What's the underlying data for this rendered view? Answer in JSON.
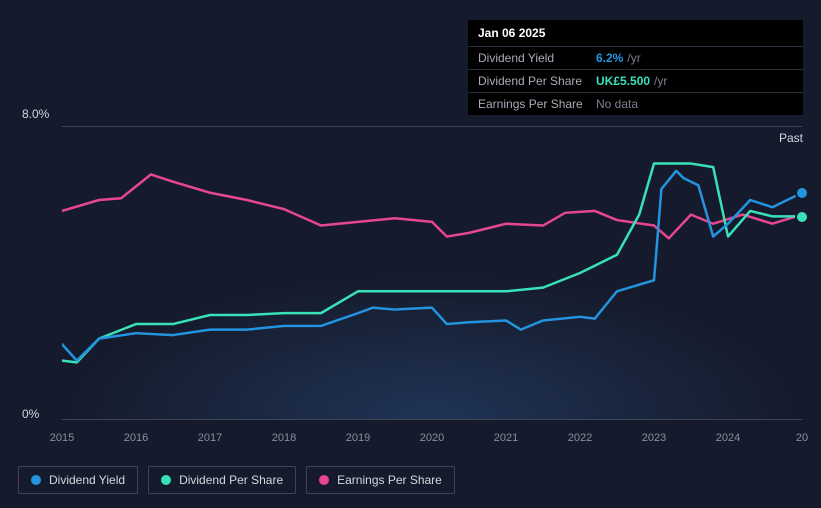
{
  "tooltip": {
    "date": "Jan 06 2025",
    "rows": [
      {
        "label": "Dividend Yield",
        "value": "6.2%",
        "suffix": "/yr",
        "class": "blue"
      },
      {
        "label": "Dividend Per Share",
        "value": "UK£5.500",
        "suffix": "/yr",
        "class": "teal"
      },
      {
        "label": "Earnings Per Share",
        "value": "No data",
        "class": "nodata"
      }
    ]
  },
  "yaxis": {
    "top": "8.0%",
    "bottom": "0%"
  },
  "past_label": "Past",
  "xaxis": {
    "labels": [
      "2015",
      "2016",
      "2017",
      "2018",
      "2019",
      "2020",
      "2021",
      "2022",
      "2023",
      "2024",
      "20"
    ]
  },
  "legend": [
    {
      "name": "Dividend Yield",
      "color": "#2394df"
    },
    {
      "name": "Dividend Per Share",
      "color": "#38e1b8"
    },
    {
      "name": "Earnings Per Share",
      "color": "#e74694"
    }
  ],
  "chart": {
    "background_color": "#151b2c",
    "grid_color": "#3e4454",
    "ylim": [
      0,
      8
    ],
    "series": {
      "dividend_yield": {
        "color": "#2394df",
        "line_width": 2.5,
        "x": [
          0,
          2,
          5,
          10,
          15,
          20,
          25,
          30,
          35,
          40,
          42,
          45,
          50,
          52,
          55,
          60,
          62,
          65,
          70,
          72,
          75,
          80,
          81,
          83,
          84,
          86,
          88,
          90,
          93,
          96,
          100
        ],
        "y": [
          2.05,
          1.6,
          2.2,
          2.35,
          2.3,
          2.45,
          2.45,
          2.55,
          2.55,
          2.9,
          3.05,
          3.0,
          3.05,
          2.6,
          2.65,
          2.7,
          2.45,
          2.7,
          2.8,
          2.75,
          3.5,
          3.8,
          6.3,
          6.8,
          6.6,
          6.4,
          5.0,
          5.35,
          6.0,
          5.8,
          6.2
        ],
        "endpoint": {
          "xpct": 100,
          "y": 6.2
        }
      },
      "dividend_per_share": {
        "color": "#38e1b8",
        "line_width": 2.5,
        "x": [
          0,
          2,
          5,
          10,
          15,
          20,
          25,
          30,
          35,
          40,
          45,
          50,
          55,
          60,
          65,
          70,
          75,
          78,
          80,
          82,
          85,
          88,
          90,
          93,
          96,
          100
        ],
        "y": [
          1.6,
          1.55,
          2.2,
          2.6,
          2.6,
          2.85,
          2.85,
          2.9,
          2.9,
          3.5,
          3.5,
          3.5,
          3.5,
          3.5,
          3.6,
          4.0,
          4.5,
          5.6,
          7.0,
          7.0,
          7.0,
          6.9,
          5.0,
          5.7,
          5.55,
          5.55
        ],
        "endpoint": {
          "xpct": 100,
          "y": 5.55
        }
      },
      "earnings_per_share": {
        "color": "#e74694",
        "line_width": 2.5,
        "x": [
          0,
          5,
          8,
          12,
          15,
          20,
          25,
          30,
          35,
          40,
          45,
          50,
          52,
          55,
          60,
          65,
          68,
          72,
          75,
          80,
          82,
          85,
          88,
          92,
          96,
          100
        ],
        "y": [
          5.7,
          6.0,
          6.05,
          6.7,
          6.5,
          6.2,
          6.0,
          5.75,
          5.3,
          5.4,
          5.5,
          5.4,
          5.0,
          5.1,
          5.35,
          5.3,
          5.65,
          5.7,
          5.45,
          5.3,
          4.95,
          5.6,
          5.35,
          5.6,
          5.35,
          5.6
        ]
      }
    }
  }
}
